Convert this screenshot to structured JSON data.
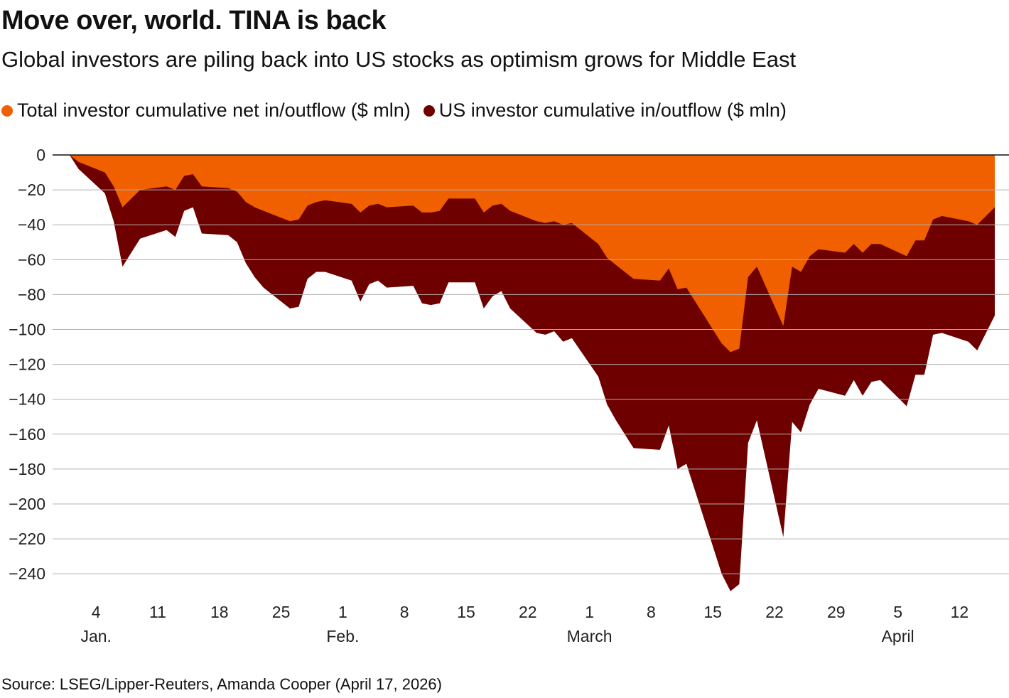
{
  "header": {
    "title": "Move over, world. TINA is back",
    "subtitle": "Global investors are piling back into US stocks as optimism grows for Middle East"
  },
  "footer": {
    "source": "Source: LSEG/Lipper-Reuters, Amanda Cooper (April 17, 2026)"
  },
  "colors": {
    "total": "#f06000",
    "us": "#6e0000",
    "grid": "#b0b0b0",
    "zero_line": "#111111"
  },
  "chart_data": {
    "type": "area",
    "title": "Move over, world. TINA is back",
    "subtitle": "Global investors are piling back into US stocks as optimism grows for Middle East",
    "xlabel": "",
    "ylabel": "",
    "ylim": [
      -250,
      0
    ],
    "xlim": [
      "2026-01-01",
      "2026-04-17"
    ],
    "grid": true,
    "legend_position": "top-left",
    "yticks": [
      0,
      -20,
      -40,
      -60,
      -80,
      -100,
      -120,
      -140,
      -160,
      -180,
      -200,
      -220,
      -240
    ],
    "ytick_labels": [
      "0",
      "−20",
      "−40",
      "−60",
      "−80",
      "−100",
      "−120",
      "−140",
      "−160",
      "−180",
      "−200",
      "−220",
      "−240"
    ],
    "xticks": [
      {
        "date": "2026-01-04",
        "label": "4",
        "month": "Jan."
      },
      {
        "date": "2026-01-11",
        "label": "11",
        "month": ""
      },
      {
        "date": "2026-01-18",
        "label": "18",
        "month": ""
      },
      {
        "date": "2026-01-25",
        "label": "25",
        "month": ""
      },
      {
        "date": "2026-02-01",
        "label": "1",
        "month": "Feb."
      },
      {
        "date": "2026-02-08",
        "label": "8",
        "month": ""
      },
      {
        "date": "2026-02-15",
        "label": "15",
        "month": ""
      },
      {
        "date": "2026-02-22",
        "label": "22",
        "month": ""
      },
      {
        "date": "2026-03-01",
        "label": "1",
        "month": "March"
      },
      {
        "date": "2026-03-08",
        "label": "8",
        "month": ""
      },
      {
        "date": "2026-03-15",
        "label": "15",
        "month": ""
      },
      {
        "date": "2026-03-22",
        "label": "22",
        "month": ""
      },
      {
        "date": "2026-03-29",
        "label": "29",
        "month": ""
      },
      {
        "date": "2026-04-05",
        "label": "5",
        "month": "April"
      },
      {
        "date": "2026-04-12",
        "label": "12",
        "month": ""
      }
    ],
    "series": [
      {
        "name": "Total investor cumulative net in/outflow ($ mln)",
        "color": "#f06000",
        "points": [
          [
            "2026-01-01",
            0
          ],
          [
            "2026-01-02",
            -4
          ],
          [
            "2026-01-05",
            -10
          ],
          [
            "2026-01-06",
            -18
          ],
          [
            "2026-01-07",
            -30
          ],
          [
            "2026-01-09",
            -20
          ],
          [
            "2026-01-12",
            -18
          ],
          [
            "2026-01-13",
            -20
          ],
          [
            "2026-01-14",
            -12
          ],
          [
            "2026-01-15",
            -11
          ],
          [
            "2026-01-16",
            -18
          ],
          [
            "2026-01-19",
            -19
          ],
          [
            "2026-01-20",
            -21
          ],
          [
            "2026-01-21",
            -27
          ],
          [
            "2026-01-22",
            -30
          ],
          [
            "2026-01-23",
            -32
          ],
          [
            "2026-01-26",
            -38
          ],
          [
            "2026-01-27",
            -37
          ],
          [
            "2026-01-28",
            -29
          ],
          [
            "2026-01-29",
            -27
          ],
          [
            "2026-01-30",
            -26
          ],
          [
            "2026-02-02",
            -28
          ],
          [
            "2026-02-03",
            -33
          ],
          [
            "2026-02-04",
            -29
          ],
          [
            "2026-02-05",
            -28
          ],
          [
            "2026-02-06",
            -30
          ],
          [
            "2026-02-09",
            -29
          ],
          [
            "2026-02-10",
            -33
          ],
          [
            "2026-02-11",
            -33
          ],
          [
            "2026-02-12",
            -32
          ],
          [
            "2026-02-13",
            -25
          ],
          [
            "2026-02-16",
            -25
          ],
          [
            "2026-02-17",
            -33
          ],
          [
            "2026-02-18",
            -29
          ],
          [
            "2026-02-19",
            -28
          ],
          [
            "2026-02-20",
            -32
          ],
          [
            "2026-02-23",
            -38
          ],
          [
            "2026-02-24",
            -39
          ],
          [
            "2026-02-25",
            -38
          ],
          [
            "2026-02-26",
            -40
          ],
          [
            "2026-02-27",
            -39
          ],
          [
            "2026-03-02",
            -51
          ],
          [
            "2026-03-03",
            -59
          ],
          [
            "2026-03-04",
            -63
          ],
          [
            "2026-03-06",
            -71
          ],
          [
            "2026-03-09",
            -72
          ],
          [
            "2026-03-10",
            -65
          ],
          [
            "2026-03-11",
            -77
          ],
          [
            "2026-03-12",
            -76
          ],
          [
            "2026-03-16",
            -108
          ],
          [
            "2026-03-17",
            -113
          ],
          [
            "2026-03-18",
            -111
          ],
          [
            "2026-03-19",
            -70
          ],
          [
            "2026-03-20",
            -64
          ],
          [
            "2026-03-23",
            -98
          ],
          [
            "2026-03-24",
            -64
          ],
          [
            "2026-03-25",
            -67
          ],
          [
            "2026-03-26",
            -58
          ],
          [
            "2026-03-27",
            -54
          ],
          [
            "2026-03-30",
            -56
          ],
          [
            "2026-03-31",
            -51
          ],
          [
            "2026-04-01",
            -56
          ],
          [
            "2026-04-02",
            -51
          ],
          [
            "2026-04-03",
            -51
          ],
          [
            "2026-04-06",
            -58
          ],
          [
            "2026-04-07",
            -49
          ],
          [
            "2026-04-08",
            -49
          ],
          [
            "2026-04-09",
            -37
          ],
          [
            "2026-04-10",
            -35
          ],
          [
            "2026-04-13",
            -38
          ],
          [
            "2026-04-14",
            -40
          ],
          [
            "2026-04-16",
            -30
          ]
        ]
      },
      {
        "name": "US investor cumulative in/outflow ($ mln)",
        "color": "#6e0000",
        "points": [
          [
            "2026-01-01",
            0
          ],
          [
            "2026-01-02",
            -8
          ],
          [
            "2026-01-05",
            -22
          ],
          [
            "2026-01-06",
            -38
          ],
          [
            "2026-01-07",
            -64
          ],
          [
            "2026-01-09",
            -48
          ],
          [
            "2026-01-12",
            -43
          ],
          [
            "2026-01-13",
            -47
          ],
          [
            "2026-01-14",
            -32
          ],
          [
            "2026-01-15",
            -30
          ],
          [
            "2026-01-16",
            -45
          ],
          [
            "2026-01-19",
            -46
          ],
          [
            "2026-01-20",
            -50
          ],
          [
            "2026-01-21",
            -62
          ],
          [
            "2026-01-22",
            -70
          ],
          [
            "2026-01-23",
            -76
          ],
          [
            "2026-01-26",
            -88
          ],
          [
            "2026-01-27",
            -87
          ],
          [
            "2026-01-28",
            -71
          ],
          [
            "2026-01-29",
            -67
          ],
          [
            "2026-01-30",
            -67
          ],
          [
            "2026-02-02",
            -72
          ],
          [
            "2026-02-03",
            -84
          ],
          [
            "2026-02-04",
            -74
          ],
          [
            "2026-02-05",
            -72
          ],
          [
            "2026-02-06",
            -76
          ],
          [
            "2026-02-09",
            -75
          ],
          [
            "2026-02-10",
            -85
          ],
          [
            "2026-02-11",
            -86
          ],
          [
            "2026-02-12",
            -85
          ],
          [
            "2026-02-13",
            -73
          ],
          [
            "2026-02-16",
            -73
          ],
          [
            "2026-02-17",
            -88
          ],
          [
            "2026-02-18",
            -81
          ],
          [
            "2026-02-19",
            -78
          ],
          [
            "2026-02-20",
            -88
          ],
          [
            "2026-02-23",
            -102
          ],
          [
            "2026-02-24",
            -103
          ],
          [
            "2026-02-25",
            -101
          ],
          [
            "2026-02-26",
            -107
          ],
          [
            "2026-02-27",
            -105
          ],
          [
            "2026-03-02",
            -127
          ],
          [
            "2026-03-03",
            -143
          ],
          [
            "2026-03-04",
            -152
          ],
          [
            "2026-03-06",
            -168
          ],
          [
            "2026-03-09",
            -169
          ],
          [
            "2026-03-10",
            -155
          ],
          [
            "2026-03-11",
            -180
          ],
          [
            "2026-03-12",
            -177
          ],
          [
            "2026-03-16",
            -240
          ],
          [
            "2026-03-17",
            -250
          ],
          [
            "2026-03-18",
            -246
          ],
          [
            "2026-03-19",
            -165
          ],
          [
            "2026-03-20",
            -152
          ],
          [
            "2026-03-23",
            -219
          ],
          [
            "2026-03-24",
            -153
          ],
          [
            "2026-03-25",
            -159
          ],
          [
            "2026-03-26",
            -143
          ],
          [
            "2026-03-27",
            -134
          ],
          [
            "2026-03-30",
            -138
          ],
          [
            "2026-03-31",
            -129
          ],
          [
            "2026-04-01",
            -138
          ],
          [
            "2026-04-02",
            -130
          ],
          [
            "2026-04-03",
            -129
          ],
          [
            "2026-04-06",
            -144
          ],
          [
            "2026-04-07",
            -126
          ],
          [
            "2026-04-08",
            -126
          ],
          [
            "2026-04-09",
            -103
          ],
          [
            "2026-04-10",
            -102
          ],
          [
            "2026-04-13",
            -107
          ],
          [
            "2026-04-14",
            -112
          ],
          [
            "2026-04-16",
            -92
          ]
        ]
      }
    ]
  }
}
